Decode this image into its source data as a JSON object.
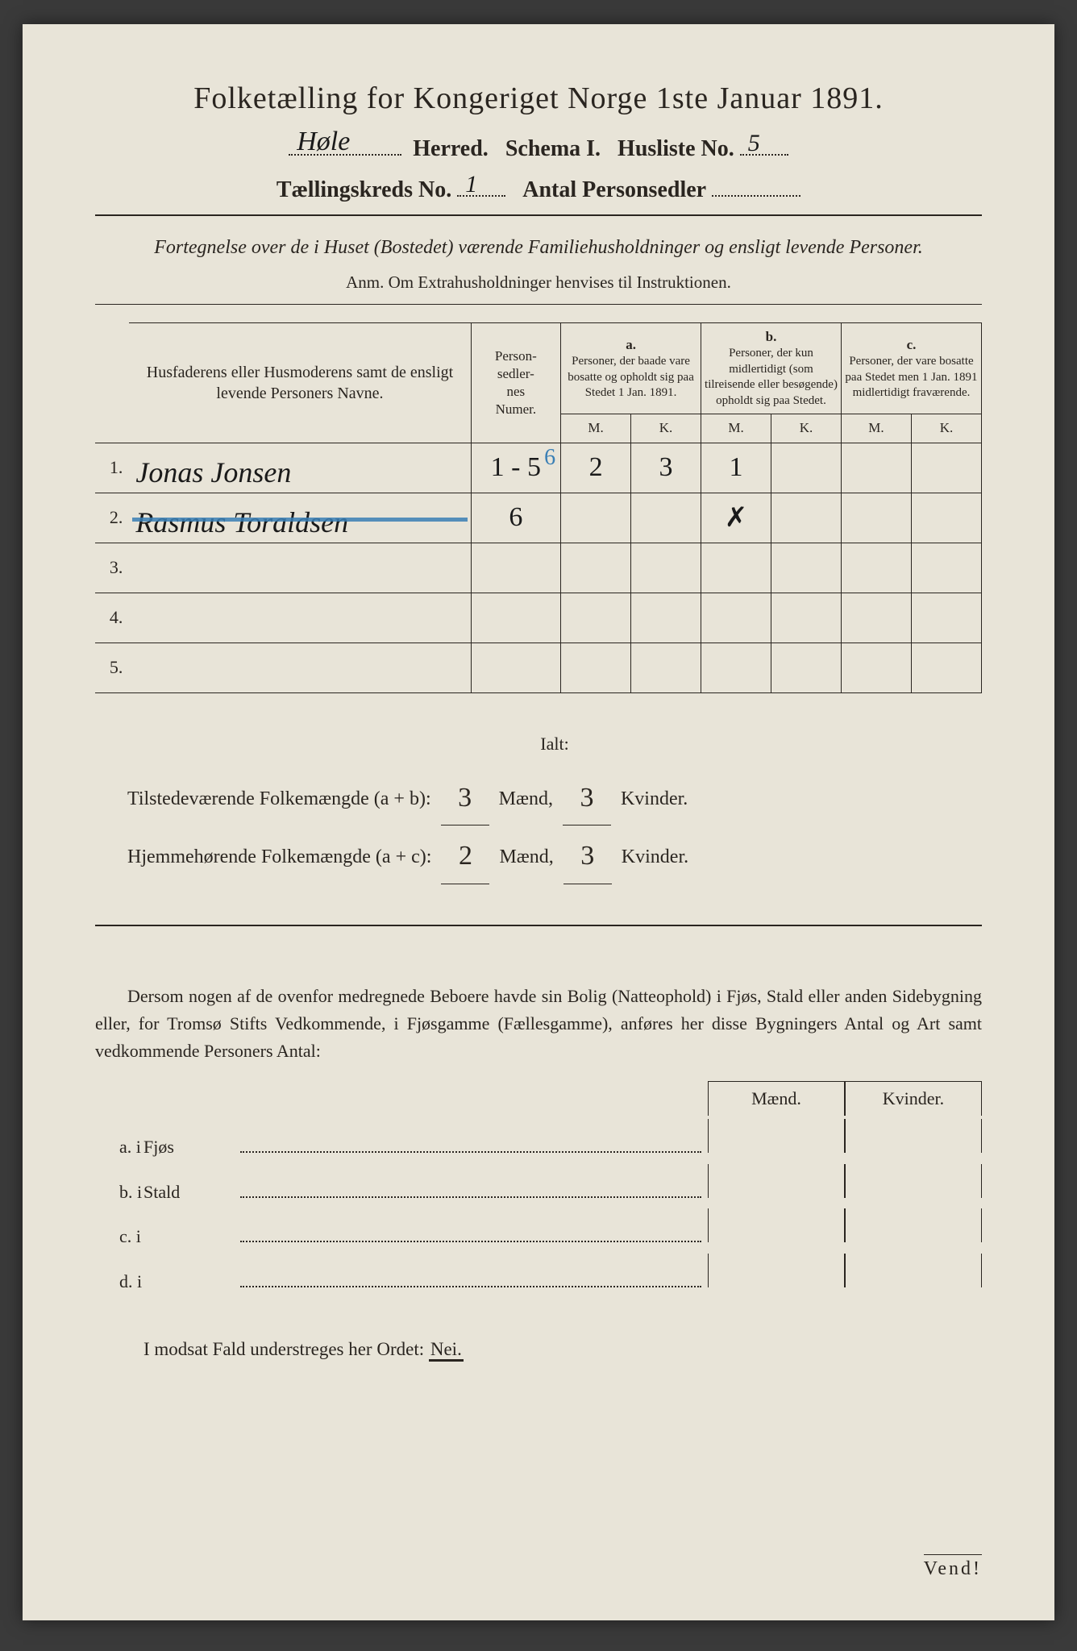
{
  "title": "Folketælling for Kongeriget Norge 1ste Januar 1891.",
  "header": {
    "herred_value": "Høle",
    "herred_label": "Herred.",
    "schema_label": "Schema I.",
    "husliste_label": "Husliste No.",
    "husliste_value": "5",
    "kreds_label": "Tællingskreds No.",
    "kreds_value": "1",
    "personsedler_label": "Antal Personsedler",
    "personsedler_value": ""
  },
  "instruction": "Fortegnelse over de i Huset (Bostedet) værende Familiehusholdninger og ensligt levende Personer.",
  "anm": "Anm. Om Extrahusholdninger henvises til Instruktionen.",
  "table": {
    "col_name": "Husfaderens eller Husmoderens samt de ensligt levende Personers Navne.",
    "col_person": "Person-\nsedler-\nnes\nNumer.",
    "col_a_top": "a.",
    "col_a": "Personer, der baade vare bosatte og opholdt sig paa Stedet 1 Jan. 1891.",
    "col_b_top": "b.",
    "col_b": "Personer, der kun midlertidigt (som tilreisende eller besøgende) opholdt sig paa Stedet.",
    "col_c_top": "c.",
    "col_c": "Personer, der vare bosatte paa Stedet men 1 Jan. 1891 midlertidigt fraværende.",
    "mk_m": "M.",
    "mk_k": "K.",
    "rows": [
      {
        "n": "1.",
        "name": "Jonas Jonsen",
        "person": "1 - 5",
        "a_m": "2",
        "a_k": "3",
        "b_m": "1",
        "b_k": "",
        "c_m": "",
        "c_k": "",
        "struck": false,
        "overwrite": "6"
      },
      {
        "n": "2.",
        "name": "Rasmus Toraldsen",
        "person": "6",
        "a_m": "",
        "a_k": "",
        "b_m": "✗",
        "b_k": "",
        "c_m": "",
        "c_k": "",
        "struck": true,
        "overwrite": ""
      },
      {
        "n": "3.",
        "name": "",
        "person": "",
        "a_m": "",
        "a_k": "",
        "b_m": "",
        "b_k": "",
        "c_m": "",
        "c_k": "",
        "struck": false,
        "overwrite": ""
      },
      {
        "n": "4.",
        "name": "",
        "person": "",
        "a_m": "",
        "a_k": "",
        "b_m": "",
        "b_k": "",
        "c_m": "",
        "c_k": "",
        "struck": false,
        "overwrite": ""
      },
      {
        "n": "5.",
        "name": "",
        "person": "",
        "a_m": "",
        "a_k": "",
        "b_m": "",
        "b_k": "",
        "c_m": "",
        "c_k": "",
        "struck": false,
        "overwrite": ""
      }
    ]
  },
  "totals": {
    "ialt": "Ialt:",
    "line1_label": "Tilstedeværende Folkemængde (a + b):",
    "line1_m": "3",
    "line1_k": "3",
    "line2_label": "Hjemmehørende Folkemængde (a + c):",
    "line2_m": "2",
    "line2_k": "3",
    "maend": "Mænd,",
    "kvinder": "Kvinder."
  },
  "paragraph": "Dersom nogen af de ovenfor medregnede Beboere havde sin Bolig (Natteophold) i Fjøs, Stald eller anden Sidebygning eller, for Tromsø Stifts Vedkommende, i Fjøsgamme (Fællesgamme), anføres her disse Bygningers Antal og Art samt vedkommende Personers Antal:",
  "mk_header": {
    "m": "Mænd.",
    "k": "Kvinder."
  },
  "buildings": [
    {
      "lead": "a.  i",
      "txt": "Fjøs"
    },
    {
      "lead": "b.  i",
      "txt": "Stald"
    },
    {
      "lead": "c.  i",
      "txt": ""
    },
    {
      "lead": "d.  i",
      "txt": ""
    }
  ],
  "nei_line": "I modsat Fald understreges her Ordet:",
  "nei": "Nei.",
  "vend": "Vend!",
  "colors": {
    "paper": "#e8e4d8",
    "ink": "#2a2520",
    "hand": "#1a1a1a",
    "blue_strike": "#3a7fb5"
  }
}
